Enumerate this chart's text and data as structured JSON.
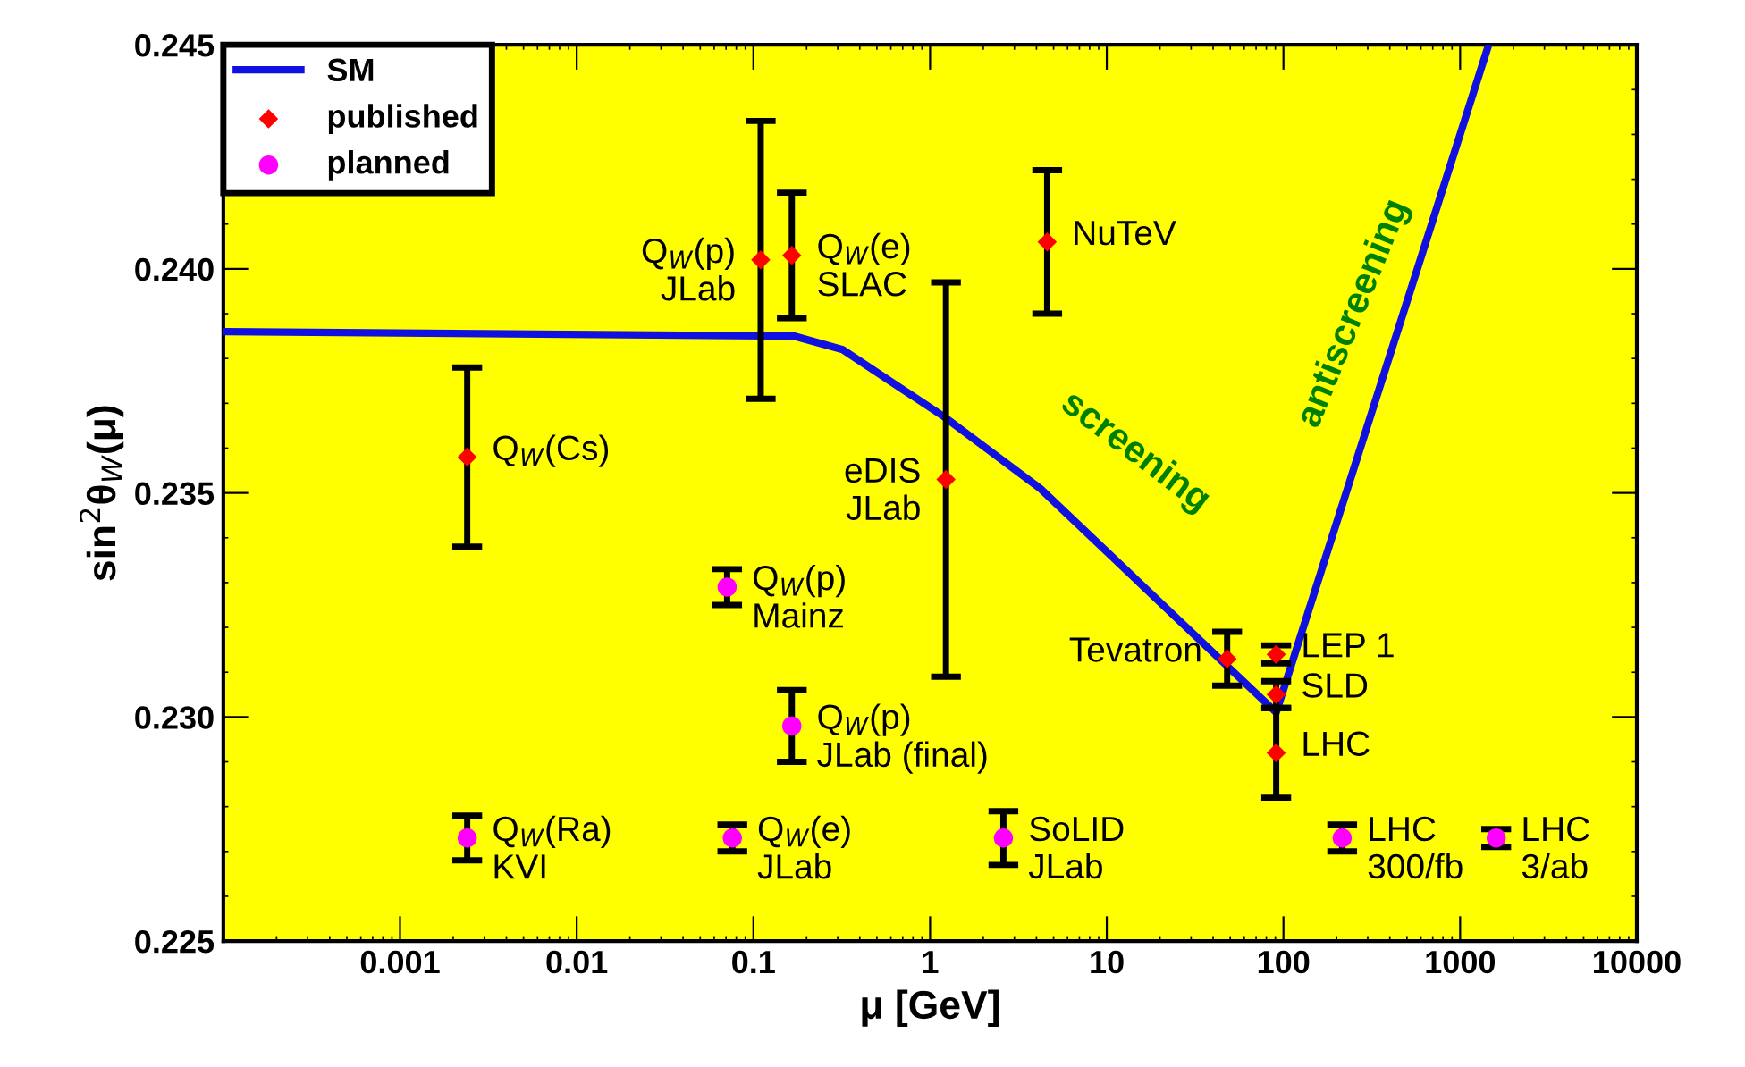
{
  "chart_data": {
    "type": "scatter",
    "xlabel": "μ [GeV]",
    "ylabel": "sin$^{2}$θ$_{W}$(μ)",
    "log": "x",
    "xlim": [
      0.0001,
      10000
    ],
    "xticks": [
      0.001,
      0.01,
      0.1,
      1,
      10,
      100,
      1000,
      10000
    ],
    "ylim": [
      0.225,
      0.245
    ],
    "yticks": [
      {
        "value": 0.225,
        "label": "0.225"
      },
      {
        "value": 0.23,
        "label": "0.230"
      },
      {
        "value": 0.235,
        "label": "0.235"
      },
      {
        "value": 0.24,
        "label": "0.240"
      },
      {
        "value": 0.245,
        "label": "0.245"
      }
    ],
    "grid": false,
    "legend": "top left",
    "series": [
      {
        "name": "SM",
        "type": "line",
        "color": "#1010e0",
        "marker": "none",
        "line_style": "solid",
        "x": [
          0.0001,
          0.17,
          0.32,
          1.2,
          4.2,
          91,
          1450
        ],
        "values": [
          0.2386,
          0.2385,
          0.2382,
          0.2367,
          0.2351,
          0.2301,
          0.245
        ]
      },
      {
        "name": "published",
        "color": "#ff0000",
        "marker": "diamond",
        "x": [
          0.0024,
          0.11,
          0.165,
          1.23,
          4.6,
          48,
          91,
          91,
          91
        ],
        "values": [
          0.2358,
          0.2402,
          0.2403,
          0.2353,
          0.2406,
          0.2313,
          0.2314,
          0.2305,
          0.2292
        ],
        "errors": [
          0.002,
          0.0031,
          0.0014,
          0.0044,
          0.0016,
          0.0006,
          0.0002,
          0.0003,
          0.001
        ]
      },
      {
        "name": "planned",
        "color": "#ff00ff",
        "marker": "circle",
        "x": [
          0.071,
          0.165,
          0.0024,
          0.076,
          2.6,
          215,
          1600
        ],
        "values": [
          0.2329,
          0.2298,
          0.2273,
          0.2273,
          0.2273,
          0.2273,
          0.2273
        ],
        "errors": [
          0.0004,
          0.0008,
          0.0005,
          0.0003,
          0.0006,
          0.0003,
          0.0002
        ]
      }
    ],
    "annotations": [
      {
        "text": "Q$_{W}$(Cs)",
        "x": 0.0024,
        "y": 0.2358
      },
      {
        "text": "Q$_{W}$(p)\nJLab",
        "x": 0.11,
        "y": 0.2402
      },
      {
        "text": "Q$_{W}$(e)\nSLAC",
        "x": 0.165,
        "y": 0.2403
      },
      {
        "text": "eDIS\nJLab",
        "x": 1.23,
        "y": 0.2353
      },
      {
        "text": "NuTeV",
        "x": 4.6,
        "y": 0.2406
      },
      {
        "text": "Tevatron",
        "x": 48,
        "y": 0.2313
      },
      {
        "text": "LEP 1",
        "x": 91,
        "y": 0.2314
      },
      {
        "text": "SLD",
        "x": 91,
        "y": 0.2305
      },
      {
        "text": "LHC",
        "x": 91,
        "y": 0.2292
      },
      {
        "text": "Q$_{W}$(p)\nMainz",
        "x": 0.071,
        "y": 0.2329
      },
      {
        "text": "Q$_{W}$(p)\nJLab (final)",
        "x": 0.165,
        "y": 0.2298
      },
      {
        "text": "Q$_{W}$(Ra)\nKVI",
        "x": 0.0024,
        "y": 0.2273
      },
      {
        "text": "Q$_{W}$(e)\nJLab",
        "x": 0.076,
        "y": 0.2273
      },
      {
        "text": "SoLID\nJLab",
        "x": 2.6,
        "y": 0.2273
      },
      {
        "text": "LHC\n300/fb",
        "x": 215,
        "y": 0.2273
      },
      {
        "text": "LHC\n3/ab",
        "x": 1600,
        "y": 0.2273
      },
      "screening",
      "antiscreening"
    ]
  }
}
